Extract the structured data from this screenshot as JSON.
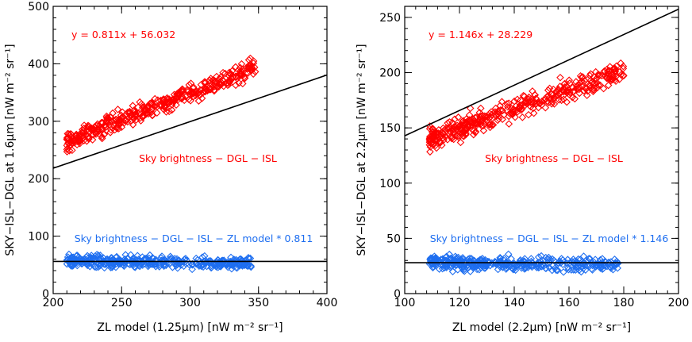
{
  "chart_data": [
    {
      "type": "scatter",
      "xlabel": "ZL model (1.25μm) [nW m⁻² sr⁻¹]",
      "ylabel": "SKY−ISL−DGL at 1.6μm [nW m⁻² sr⁻¹]",
      "xlim": [
        200,
        400
      ],
      "ylim": [
        0,
        500
      ],
      "xticks": [
        200,
        250,
        300,
        350,
        400
      ],
      "yticks": [
        0,
        100,
        200,
        300,
        400,
        500
      ],
      "fit_equation": "y = 0.811x + 56.032",
      "fit": {
        "slope": 0.811,
        "intercept": 56.032
      },
      "flat_line": {
        "y": 56
      },
      "series": [
        {
          "name": "Sky brightness − DGL − ISL",
          "color": "#ff0000",
          "x_range": [
            210,
            348
          ],
          "y_start": 264,
          "y_end": 395,
          "scatter": 8
        },
        {
          "name": "Sky brightness − DGL − ISL − ZL model * 0.811",
          "color": "#1e6ef0",
          "x_range": [
            210,
            345
          ],
          "y_start": 56,
          "y_end": 53,
          "scatter": 5
        }
      ]
    },
    {
      "type": "scatter",
      "xlabel": "ZL model (2.2μm) [nW m⁻² sr⁻¹]",
      "ylabel": "SKY−ISL−DGL at 2.2μm [nW m⁻² sr⁻¹]",
      "xlim": [
        100,
        200
      ],
      "ylim": [
        0,
        260
      ],
      "xticks": [
        100,
        120,
        140,
        160,
        180,
        200
      ],
      "yticks": [
        0,
        50,
        100,
        150,
        200,
        250
      ],
      "fit_equation": "y = 1.146x + 28.229",
      "fit": {
        "slope": 1.146,
        "intercept": 28.229
      },
      "flat_line": {
        "y": 28
      },
      "series": [
        {
          "name": "Sky brightness − DGL − ISL",
          "color": "#ff0000",
          "x_range": [
            109,
            180
          ],
          "y_start": 140,
          "y_end": 202,
          "scatter": 5
        },
        {
          "name": "Sky brightness − DGL − ISL − ZL model * 1.146",
          "color": "#1e6ef0",
          "x_range": [
            109,
            178
          ],
          "y_start": 28,
          "y_end": 26,
          "scatter": 3
        }
      ]
    }
  ]
}
